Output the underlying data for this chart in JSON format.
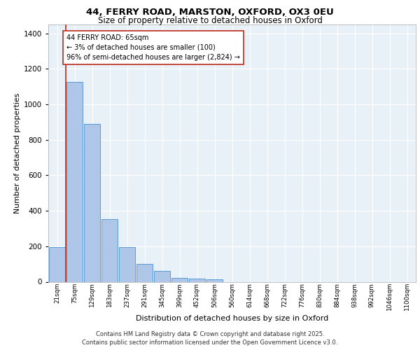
{
  "title1": "44, FERRY ROAD, MARSTON, OXFORD, OX3 0EU",
  "title2": "Size of property relative to detached houses in Oxford",
  "xlabel": "Distribution of detached houses by size in Oxford",
  "ylabel": "Number of detached properties",
  "bar_labels": [
    "21sqm",
    "75sqm",
    "129sqm",
    "183sqm",
    "237sqm",
    "291sqm",
    "345sqm",
    "399sqm",
    "452sqm",
    "506sqm",
    "560sqm",
    "614sqm",
    "668sqm",
    "722sqm",
    "776sqm",
    "830sqm",
    "884sqm",
    "938sqm",
    "992sqm",
    "1046sqm",
    "1100sqm"
  ],
  "bar_values": [
    195,
    1125,
    890,
    355,
    195,
    100,
    60,
    22,
    18,
    12,
    0,
    0,
    0,
    0,
    0,
    0,
    0,
    0,
    0,
    0,
    0
  ],
  "bar_color": "#aec6e8",
  "bar_edge_color": "#5b9bd5",
  "vline_color": "#c0392b",
  "annotation_text": "44 FERRY ROAD: 65sqm\n← 3% of detached houses are smaller (100)\n96% of semi-detached houses are larger (2,824) →",
  "annotation_box_color": "#ffffff",
  "annotation_box_edge": "#c0392b",
  "ylim": [
    0,
    1450
  ],
  "yticks": [
    0,
    200,
    400,
    600,
    800,
    1000,
    1200,
    1400
  ],
  "background_color": "#e8f0f8",
  "grid_color": "#ffffff",
  "footer1": "Contains HM Land Registry data © Crown copyright and database right 2025.",
  "footer2": "Contains public sector information licensed under the Open Government Licence v3.0."
}
